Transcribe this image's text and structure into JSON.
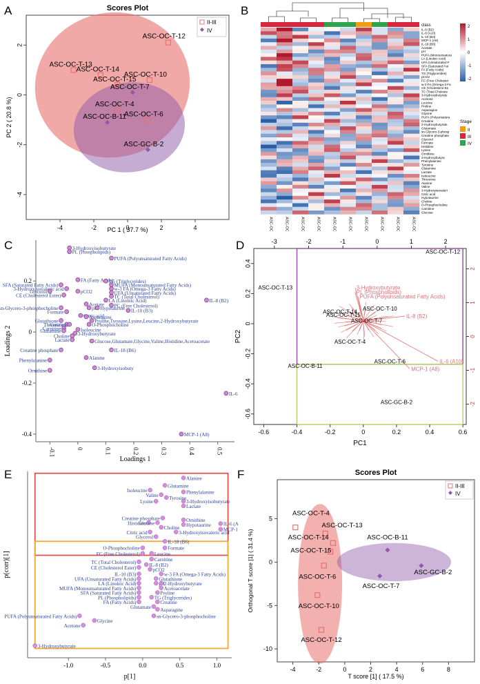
{
  "panels": {
    "A": "A",
    "B": "B",
    "C": "C",
    "D": "D",
    "E": "E",
    "F": "F"
  },
  "chart_data": [
    {
      "panel": "A",
      "type": "scatter",
      "title": "Scores Plot",
      "xlabel": "PC 1 ( 37.7 %)",
      "ylabel": "PC 2 ( 20.8 %)",
      "xlim": [
        -6,
        6
      ],
      "ylim": [
        -5,
        3.2
      ],
      "xticks": [
        -4,
        -2,
        0,
        2,
        4
      ],
      "yticks": [
        -4,
        -2,
        0,
        2
      ],
      "legend": [
        {
          "label": "II-III",
          "color": "#e8706e"
        },
        {
          "label": "IV",
          "color": "#8e5aa8"
        }
      ],
      "ellipses": [
        {
          "group": "II-III",
          "cx": -0.9,
          "cy": 0.4,
          "rx": 4.6,
          "ry": 2.9,
          "angle": -15,
          "color": "#e8706e"
        },
        {
          "group": "IV",
          "cx": 0.1,
          "cy": -1.3,
          "rx": 3.3,
          "ry": 1.8,
          "angle": -8,
          "color": "#8e5aa8"
        }
      ],
      "points": [
        {
          "label": "ASC-OC-T-12",
          "x": 2.4,
          "y": 2.1,
          "group": "II-III"
        },
        {
          "label": "ASC-OC-T-13",
          "x": -3.2,
          "y": 1.0,
          "group": "II-III"
        },
        {
          "label": "ASC-OC-T-14",
          "x": -1.6,
          "y": 0.8,
          "group": "II-III"
        },
        {
          "label": "ASC-OC-T-10",
          "x": 1.3,
          "y": 0.6,
          "group": "II-III"
        },
        {
          "label": "ASC-OC-T-15",
          "x": -0.6,
          "y": 0.4,
          "group": "II-III"
        },
        {
          "label": "ASC-OC-T-7",
          "x": 0.3,
          "y": 0.1,
          "group": "IV"
        },
        {
          "label": "ASC-OC-T-4",
          "x": -0.6,
          "y": -0.6,
          "group": "II-III"
        },
        {
          "label": "ASC-OC-B-11",
          "x": -1.2,
          "y": -1.1,
          "group": "IV"
        },
        {
          "label": "ASC-OC-T-6",
          "x": 1.2,
          "y": -1.0,
          "group": "II-III"
        },
        {
          "label": "ASC-GC-B-2",
          "x": 1.2,
          "y": -2.2,
          "group": "IV"
        }
      ]
    },
    {
      "panel": "B",
      "type": "heatmap",
      "columns": [
        "ASC-OC-T-10",
        "ASC-OC-T-12",
        "ASC-OC-T-4",
        "ASC-OC-T-6",
        "ASC-GC-B-2",
        "ASC-OC-B-11",
        "ASC-OC-T-13",
        "ASC-OC-T-7",
        "ASC-OC-T-14",
        "ASC-OC-T-15"
      ],
      "class_label": "class",
      "class_row": [
        "III",
        "III",
        "III",
        "III",
        "IV",
        "IV",
        "II",
        "IV",
        "III",
        "III"
      ],
      "rows": [
        "IL-6 (B2)",
        "IL-6 (A10)",
        "IL-10 (B3)",
        "MCP-1 (A8)",
        "IL-18 (B6)",
        "Acetate",
        "pH",
        "PUFA (Monounsatura",
        "LA (Linoleic Acid)",
        "UFA (Unsaturated F",
        "SFA (Saturated Fat",
        "FA (Fatty Acids)",
        "TG (Triglycerides)",
        "pCO2",
        "FC (Free Cholester",
        "w-3 FA (Omega-3 Fa",
        "CE (Cholesterol Es",
        "TC (Total Choleste",
        "3-Hydroxybutyrate",
        "Acetone",
        "Leucine",
        "Proline",
        "Asparagine",
        "Glycine",
        "PUFA (Polyunsatura",
        "Creatine",
        "2-Hydroxybutyrate",
        "Glutamate",
        "sn-Glycero-3-phosp",
        "Creatine phosphate",
        "Glycerol",
        "Formate",
        "Histidine",
        "Lysine",
        "Ornithine",
        "3-Hydroxybutyra",
        "Phenylalanine",
        "Tyrosine",
        "Glutamine",
        "Lactate",
        "Isoleucine",
        "Threonine",
        "Alanine",
        "Valine",
        "3-Hydroxyisovaleri",
        "Citric acid",
        "Hypotaurine",
        "Choline",
        "O-Phosphocholine",
        "Carnitine",
        "Glucose"
      ],
      "colorbar": {
        "ticks": [
          2,
          1,
          0,
          -1,
          -2
        ],
        "low": "#2a5fa8",
        "mid": "#ffffff",
        "high": "#b2182b"
      },
      "stage_legend": {
        "title": "Stage",
        "items": [
          {
            "label": "II",
            "color": "#f39c12"
          },
          {
            "label": "III",
            "color": "#d7263d"
          },
          {
            "label": "IV",
            "color": "#2ea44f"
          }
        ]
      }
    },
    {
      "panel": "C",
      "type": "scatter",
      "xlabel": "Loadings 1",
      "ylabel": "Loadings 2",
      "xlim": [
        -0.15,
        0.56
      ],
      "ylim": [
        -0.43,
        0.36
      ],
      "xticks": [
        -0.1,
        0,
        0.1,
        0.2,
        0.3,
        0.4,
        0.5
      ],
      "yticks": [
        -0.4,
        -0.2,
        0,
        0.2
      ],
      "points": [
        {
          "label": "3-Hydroxyisobutyrate",
          "x": -0.03,
          "y": 0.33
        },
        {
          "label": "PL (Phospholipids)",
          "x": -0.03,
          "y": 0.315
        },
        {
          "label": "PUFA (Polyunsaturated Fatty Acids)",
          "x": 0.12,
          "y": 0.29
        },
        {
          "label": "FA (Fatty Acids)",
          "x": 0.0,
          "y": 0.205
        },
        {
          "label": "TG (Triglycerides)",
          "x": 0.1,
          "y": 0.2
        },
        {
          "label": "SFA (Saturated Fatty Acids)",
          "x": -0.06,
          "y": 0.185
        },
        {
          "label": "MUFA (Monounsaturated Fatty Acids)",
          "x": 0.12,
          "y": 0.185
        },
        {
          "label": "3-Hydroxyisovaleric acid",
          "x": -0.04,
          "y": 0.17
        },
        {
          "label": "w-3 FA (Omega-3 Fatty Acids)",
          "x": 0.12,
          "y": 0.17
        },
        {
          "label": "Glycerol",
          "x": -0.1,
          "y": 0.16
        },
        {
          "label": "pCO2",
          "x": 0.0,
          "y": 0.16
        },
        {
          "label": "UFA (Unsaturated Fatty Acids)",
          "x": 0.12,
          "y": 0.155
        },
        {
          "label": "CE (Cholesterol Ester)",
          "x": -0.05,
          "y": 0.145
        },
        {
          "label": "TC (Total Cholesterol)",
          "x": 0.12,
          "y": 0.14
        },
        {
          "label": "LA (Linoleic Acid)",
          "x": 0.1,
          "y": 0.125
        },
        {
          "label": "Acetate",
          "x": 0.03,
          "y": 0.11
        },
        {
          "label": "PC (Free Cholesterol)",
          "x": 0.12,
          "y": 0.105
        },
        {
          "label": "sn-Glycero-3-phosphocholine",
          "x": -0.06,
          "y": 0.095
        },
        {
          "label": "pH",
          "x": 0.04,
          "y": 0.095
        },
        {
          "label": "Hypotaurine",
          "x": 0.07,
          "y": 0.095
        },
        {
          "label": "IL-10 (B3)",
          "x": 0.18,
          "y": 0.085
        },
        {
          "label": "IL-8 (B2)",
          "x": 0.46,
          "y": 0.125
        },
        {
          "label": "Formate",
          "x": -0.04,
          "y": 0.08
        },
        {
          "label": "Citric acid",
          "x": 0.01,
          "y": 0.065
        },
        {
          "label": "Asparagine",
          "x": 0.03,
          "y": 0.06
        },
        {
          "label": "Glutathione",
          "x": -0.06,
          "y": 0.045
        },
        {
          "label": "Proline,Tyrosine,Lysine,Leucine,2-Hydroxybutyrate",
          "x": 0.05,
          "y": 0.045
        },
        {
          "label": "Threonine",
          "x": -0.04,
          "y": 0.03
        },
        {
          "label": "Creatine",
          "x": -0.03,
          "y": 0.03
        },
        {
          "label": "O-Phosphocholine",
          "x": 0.04,
          "y": 0.03
        },
        {
          "label": "Carnitine",
          "x": -0.05,
          "y": 0.015
        },
        {
          "label": "Isoleucine",
          "x": 0.0,
          "y": 0.01
        },
        {
          "label": "Glutamine",
          "x": -0.05,
          "y": 0.005
        },
        {
          "label": "3-Hydroxybutyrate",
          "x": -0.01,
          "y": -0.005
        },
        {
          "label": "Choline",
          "x": -0.02,
          "y": -0.015
        },
        {
          "label": "Lactate",
          "x": -0.02,
          "y": -0.03
        },
        {
          "label": "Glucose,Glutamate,Glycine,Valine,Histidine,Acetoacetate",
          "x": 0.05,
          "y": -0.035
        },
        {
          "label": "Creatine phosphate",
          "x": -0.06,
          "y": -0.07
        },
        {
          "label": "IL-18 (B6)",
          "x": 0.12,
          "y": -0.07
        },
        {
          "label": "Alanine",
          "x": 0.03,
          "y": -0.1
        },
        {
          "label": "Phenylalanine",
          "x": -0.1,
          "y": -0.11
        },
        {
          "label": "3-Hydroxyisobuty",
          "x": 0.06,
          "y": -0.14
        },
        {
          "label": "Ornithine",
          "x": -0.1,
          "y": -0.15
        },
        {
          "label": "IL-6 (A10)",
          "x": 0.53,
          "y": -0.24
        },
        {
          "label": "MCP-1 (A8)",
          "x": 0.37,
          "y": -0.4
        }
      ]
    },
    {
      "panel": "D",
      "type": "scatter",
      "xlabel": "PC1",
      "ylabel": "PC2",
      "xlim": [
        -0.66,
        0.62
      ],
      "ylim": [
        -0.67,
        0.5
      ],
      "xticks": [
        -0.6,
        -0.4,
        -0.2,
        0,
        0.2,
        0.4,
        0.6
      ],
      "yticks": [
        -0.6,
        -0.4,
        -0.2,
        0,
        0.2,
        0.4
      ],
      "top_axis_ticks": [
        -3,
        -2,
        -1,
        0,
        1,
        2
      ],
      "right_axis_ticks": [
        2,
        1,
        0,
        -1,
        -2
      ],
      "points": [
        {
          "label": "ASC-OC-T-12",
          "x": 0.48,
          "y": 0.48
        },
        {
          "label": "ASC-OC-T-13",
          "x": -0.53,
          "y": 0.24
        },
        {
          "label": "ASC-OC-T-10",
          "x": 0.1,
          "y": 0.1
        },
        {
          "label": "ASC-OC-T-14",
          "x": -0.14,
          "y": 0.08
        },
        {
          "label": "ASC-OC-T-15",
          "x": -0.12,
          "y": 0.06
        },
        {
          "label": "ASC-OC-T-7",
          "x": 0.02,
          "y": 0.02
        },
        {
          "label": "ASC-OC-T-4",
          "x": -0.08,
          "y": -0.12
        },
        {
          "label": "ASC-OC-T-6",
          "x": 0.16,
          "y": -0.25
        },
        {
          "label": "ASC-OC-B-11",
          "x": -0.35,
          "y": -0.28
        },
        {
          "label": "ASC-GC-B-2",
          "x": 0.2,
          "y": -0.52
        }
      ],
      "arrows": [
        {
          "label": "3-Hydroxybutyrate",
          "x": -0.05,
          "y": 0.24
        },
        {
          "label": "PL (Phospholipids)",
          "x": -0.05,
          "y": 0.21
        },
        {
          "label": "PUFA (Polyunsaturated Fatty Acids)",
          "x": -0.03,
          "y": 0.18
        },
        {
          "label": "IL-8 (B2)",
          "x": 0.25,
          "y": 0.05
        },
        {
          "label": "IL-6 (A10)",
          "x": 0.45,
          "y": -0.25
        },
        {
          "label": "MCP-1 (A8)",
          "x": 0.28,
          "y": -0.3
        }
      ]
    },
    {
      "panel": "E",
      "type": "scatter",
      "xlabel": "p[1]",
      "ylabel": "p(corr)[1]",
      "xlim": [
        -1.55,
        1.2
      ],
      "ylim": [
        -1.0,
        1.0
      ],
      "xticks": [
        -1.0,
        -0.5,
        0.0,
        0.5,
        1.0
      ],
      "points": [
        {
          "label": "Alanine",
          "x": 0.55,
          "y": 0.93
        },
        {
          "label": "Glutamine",
          "x": 0.3,
          "y": 0.85
        },
        {
          "label": "Isoleucine",
          "x": 0.1,
          "y": 0.8
        },
        {
          "label": "Phenylalanine",
          "x": 0.55,
          "y": 0.78
        },
        {
          "label": "Valine",
          "x": 0.25,
          "y": 0.75
        },
        {
          "label": "Tyrosine",
          "x": 0.32,
          "y": 0.72
        },
        {
          "label": "Lysine",
          "x": 0.18,
          "y": 0.68
        },
        {
          "label": "3-Hydroxyisobutyrate",
          "x": 0.55,
          "y": 0.68
        },
        {
          "label": "Lactate",
          "x": 0.55,
          "y": 0.63
        },
        {
          "label": "Creatine phosphate",
          "x": 0.27,
          "y": 0.5
        },
        {
          "label": "Ornithine",
          "x": 0.55,
          "y": 0.48
        },
        {
          "label": "IL-6 (A10)",
          "x": 1.05,
          "y": 0.44
        },
        {
          "label": "Histidine",
          "x": 0.08,
          "y": 0.45
        },
        {
          "label": "Glucose",
          "x": 0.2,
          "y": 0.45
        },
        {
          "label": "Hypotaurine",
          "x": 0.55,
          "y": 0.43
        },
        {
          "label": "MCP-1 (A8)",
          "x": 1.05,
          "y": 0.38
        },
        {
          "label": "Choline",
          "x": 0.25,
          "y": 0.4
        },
        {
          "label": "Citric acid",
          "x": 0.1,
          "y": 0.35
        },
        {
          "label": "3-Hydroxyisovaleric acid",
          "x": 0.45,
          "y": 0.35
        },
        {
          "label": "Glycerol",
          "x": 0.18,
          "y": 0.3
        },
        {
          "label": "IL-18 (B6)",
          "x": 0.3,
          "y": 0.25
        },
        {
          "label": "O-Phosphocholine",
          "x": 0.0,
          "y": 0.18
        },
        {
          "label": "Formate",
          "x": 0.3,
          "y": 0.18
        },
        {
          "label": "FC (Free Cholesterol)",
          "x": 0.0,
          "y": 0.12
        },
        {
          "label": "Leucine",
          "x": 0.12,
          "y": 0.12
        },
        {
          "label": "Carnitine",
          "x": 0.12,
          "y": 0.06
        },
        {
          "label": "TC (Total Cholesterol)",
          "x": -0.05,
          "y": 0.03
        },
        {
          "label": "IL-8 (B2)",
          "x": 0.05,
          "y": 0.0
        },
        {
          "label": "CE (Cholesterol Ester)",
          "x": -0.05,
          "y": -0.03
        },
        {
          "label": "pCO2",
          "x": 0.1,
          "y": -0.05
        },
        {
          "label": "IL-10 (B3)",
          "x": -0.05,
          "y": -0.1
        },
        {
          "label": "w-3 FA (Omega-3 Fatty Acids)",
          "x": 0.25,
          "y": -0.1
        },
        {
          "label": "UFA (Unsaturated Fatty Acids)",
          "x": -0.05,
          "y": -0.15
        },
        {
          "label": "Glutathione",
          "x": 0.18,
          "y": -0.15
        },
        {
          "label": "LA (Linoleic Acid)",
          "x": -0.05,
          "y": -0.2
        },
        {
          "label": "pH",
          "x": 0.18,
          "y": -0.2
        },
        {
          "label": "2-Hydroxybutyrate",
          "x": 0.25,
          "y": -0.2
        },
        {
          "label": "MUFA (Monounsaturated Fatty Acids)",
          "x": -0.05,
          "y": -0.25
        },
        {
          "label": "Acetoacetate",
          "x": 0.25,
          "y": -0.25
        },
        {
          "label": "SFA (Saturated Fatty Acids)",
          "x": -0.05,
          "y": -0.3
        },
        {
          "label": "Proline",
          "x": 0.2,
          "y": -0.3
        },
        {
          "label": "PL (Phospholipids)",
          "x": -0.05,
          "y": -0.35
        },
        {
          "label": "TG (Triglycerides)",
          "x": 0.12,
          "y": -0.35
        },
        {
          "label": "FA (Fatty Acids)",
          "x": -0.05,
          "y": -0.4
        },
        {
          "label": "Creatine",
          "x": 0.2,
          "y": -0.4
        },
        {
          "label": "Glutamate",
          "x": 0.15,
          "y": -0.45
        },
        {
          "label": "Asparagine",
          "x": 0.2,
          "y": -0.48
        },
        {
          "label": "PUFA (Polyunsaturated Fatty Acids)",
          "x": -0.85,
          "y": -0.55
        },
        {
          "label": "sn-Glycero-3-phosphocholine",
          "x": 0.15,
          "y": -0.55
        },
        {
          "label": "Glycine",
          "x": -0.65,
          "y": -0.6
        },
        {
          "label": "Acetone",
          "x": -0.8,
          "y": -0.65
        },
        {
          "label": "3-Hydroxybutyrate",
          "x": -1.45,
          "y": -0.87
        }
      ]
    },
    {
      "panel": "F",
      "type": "scatter",
      "title": "Scores Plot",
      "xlabel": "T score [1] ( 17.5 %)",
      "ylabel": "Orthogonal T score [1] ( 31.4 %)",
      "xlim": [
        -5.2,
        10
      ],
      "ylim": [
        -11.5,
        9.5
      ],
      "xticks": [
        -4,
        -2,
        0,
        2,
        4,
        6,
        8
      ],
      "yticks": [
        -10,
        -5,
        0,
        5
      ],
      "legend": [
        {
          "label": "II-III",
          "color": "#e8706e"
        },
        {
          "label": "IV",
          "color": "#8e5aa8"
        }
      ],
      "ellipses": [
        {
          "group": "II-III",
          "cx": -1.9,
          "cy": -2.5,
          "rx": 1.7,
          "ry": 9.2,
          "angle": 0,
          "color": "#e8706e"
        },
        {
          "group": "IV",
          "cx": 3.8,
          "cy": 0.0,
          "rx": 4.4,
          "ry": 2.2,
          "angle": 0,
          "color": "#8e5aa8"
        }
      ],
      "points": [
        {
          "label": "ASC-OC-T-4",
          "x": -3.8,
          "y": 4.0,
          "group": "II-III"
        },
        {
          "label": "ASC-OC-T-13",
          "x": -1.5,
          "y": 3.3,
          "group": "II-III"
        },
        {
          "label": "ASC-OC-T-14",
          "x": -0.9,
          "y": 2.2,
          "group": "II-III"
        },
        {
          "label": "ASC-OC-T-15",
          "x": -1.1,
          "y": 1.2,
          "group": "II-III"
        },
        {
          "label": "ASC-OC-T-6",
          "x": -1.6,
          "y": -0.4,
          "group": "II-III"
        },
        {
          "label": "ASC-OC-T-10",
          "x": -2.1,
          "y": -3.8,
          "group": "II-III"
        },
        {
          "label": "ASC-OC-T-12",
          "x": -1.8,
          "y": -7.8,
          "group": "II-III"
        },
        {
          "label": "ASC-OC-B-11",
          "x": 3.3,
          "y": 1.4,
          "group": "IV"
        },
        {
          "label": "ASC-OC-T-7",
          "x": 2.7,
          "y": -1.6,
          "group": "IV"
        },
        {
          "label": "ASC-GC-B-2",
          "x": 5.9,
          "y": -0.4,
          "group": "IV"
        }
      ]
    }
  ]
}
